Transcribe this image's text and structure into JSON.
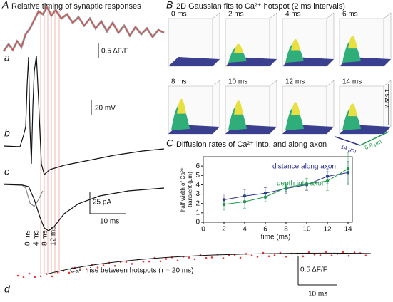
{
  "panel_a": {
    "letter": "A",
    "title": "Relative timing of synaptic responses",
    "trace_labels": [
      "a",
      "b",
      "c",
      "d"
    ],
    "scale_bars": [
      "0.5 ΔF/F",
      "20 mV",
      "25 pA",
      "10 ms",
      "0.5 ΔF/F",
      "10 ms"
    ],
    "time_markers": [
      "0 ms",
      "4 ms",
      "8 ms",
      "12 ms"
    ],
    "fit_note": "Ca²⁺ rise between hotspots (τ = 20 ms)"
  },
  "panel_b": {
    "letter": "B",
    "title": "2D Gaussian fits to Ca²⁺ hotspot (2 ms intervals)",
    "frames": [
      "0 ms",
      "2 ms",
      "4 ms",
      "6 ms",
      "8 ms",
      "10 ms",
      "12 ms",
      "14 ms"
    ],
    "z_scale": "1.5 ΔF/F",
    "x_scale": "14 μm",
    "y_scale": "8.8 μm"
  },
  "chart_data": {
    "type": "line",
    "letter": "C",
    "title": "Diffusion rates of Ca²⁺ into, and along axon",
    "xlabel": "time (ms)",
    "ylabel": [
      "half width of Ca²⁺",
      "transient (μm)"
    ],
    "x": [
      2,
      4,
      6,
      8,
      10,
      12,
      14
    ],
    "series": [
      {
        "name": "distance along axon",
        "color": "#2e3192",
        "values": [
          2.4,
          2.8,
          3.1,
          3.6,
          4.0,
          4.9,
          5.3
        ],
        "errors": [
          0.6,
          0.7,
          0.6,
          0.5,
          0.6,
          0.8,
          1.2
        ]
      },
      {
        "name": "depth into axon",
        "color": "#1a9a4a",
        "values": [
          1.9,
          2.2,
          2.7,
          3.7,
          4.1,
          4.4,
          5.7
        ],
        "errors": [
          0.6,
          0.7,
          0.5,
          0.4,
          0.6,
          1.0,
          1.7
        ]
      }
    ],
    "xlim": [
      0,
      14
    ],
    "ylim": [
      0,
      7
    ],
    "xticks": [
      0,
      2,
      4,
      6,
      8,
      10,
      12,
      14
    ],
    "yticks": [
      0,
      1,
      2,
      3,
      4,
      5,
      6
    ]
  }
}
